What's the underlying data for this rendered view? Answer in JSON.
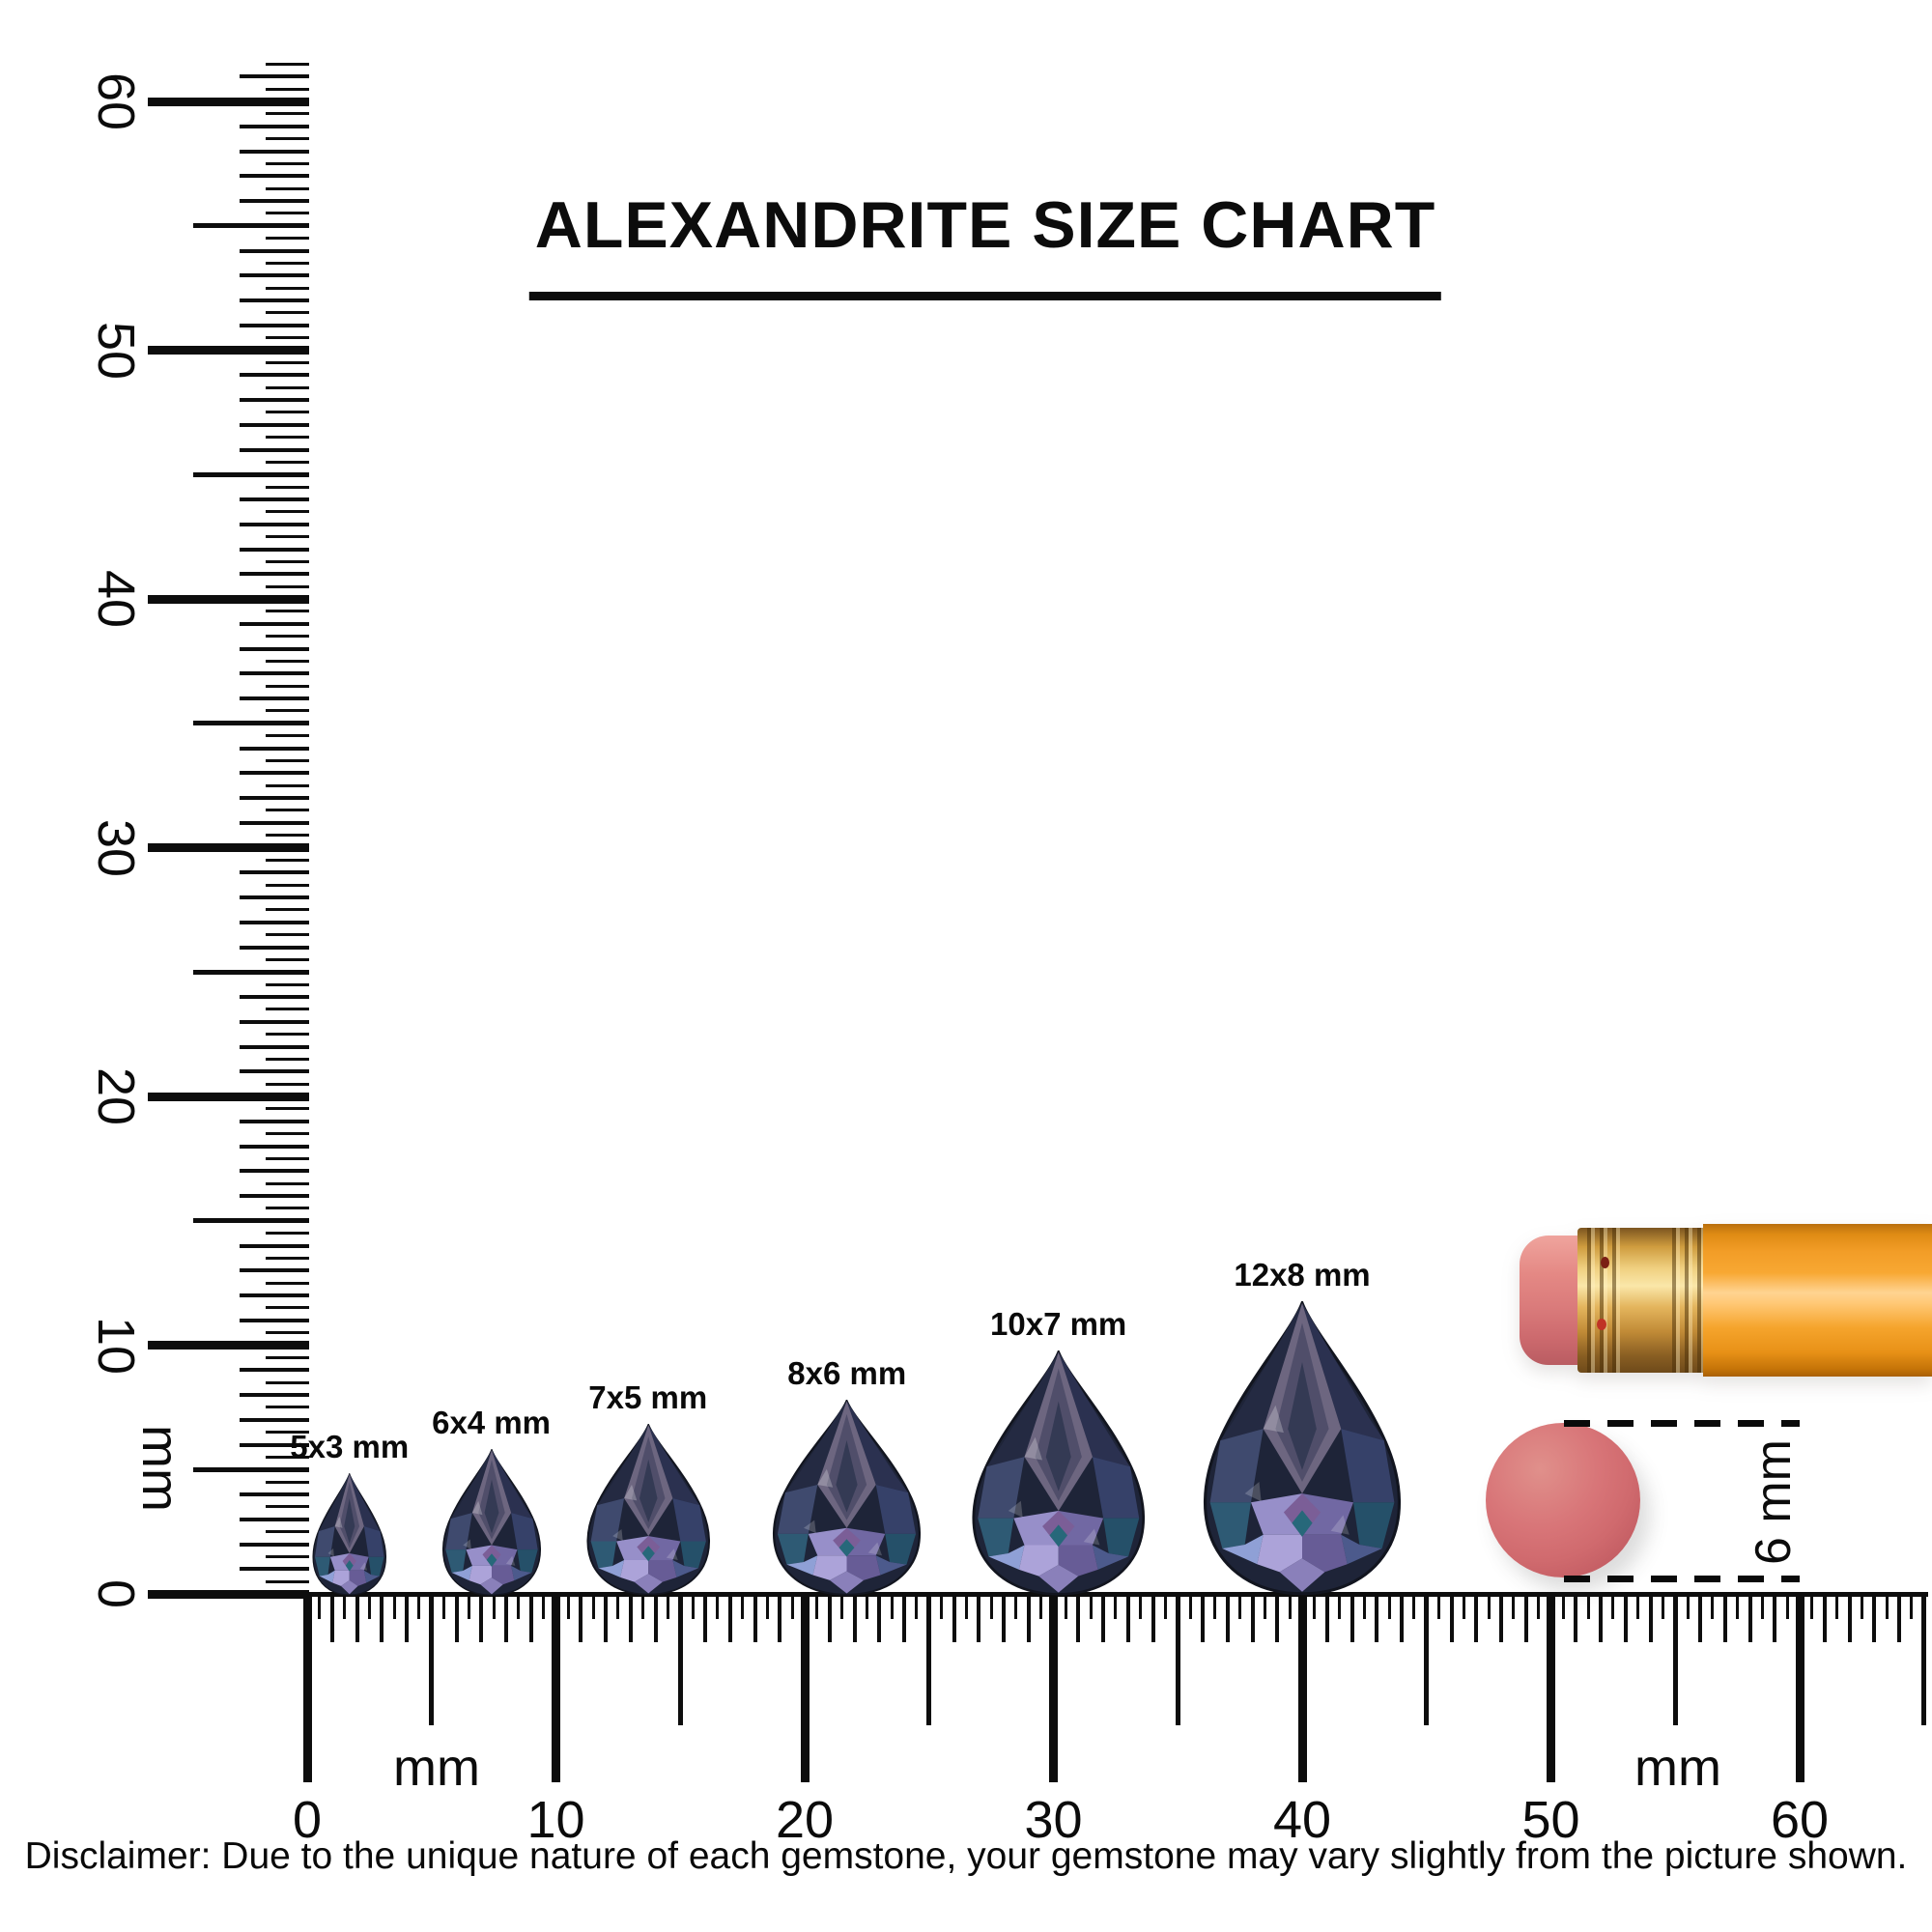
{
  "title": "ALEXANDRITE SIZE CHART",
  "disclaimer": "Disclaimer: Due to the unique nature of each gemstone, your gemstone may vary slightly from the picture shown.",
  "chart_data": {
    "type": "size_chart",
    "subject": "Alexandrite pear-cut gemstones shown at scale against millimeter rulers",
    "unit": "mm",
    "gemstones": [
      {
        "label": "5x3 mm",
        "length_mm": 5,
        "width_mm": 3,
        "center_position_mm": 1.7
      },
      {
        "label": "6x4 mm",
        "length_mm": 6,
        "width_mm": 4,
        "center_position_mm": 7.4
      },
      {
        "label": "7x5 mm",
        "length_mm": 7,
        "width_mm": 5,
        "center_position_mm": 13.7
      },
      {
        "label": "8x6 mm",
        "length_mm": 8,
        "width_mm": 6,
        "center_position_mm": 21.7
      },
      {
        "label": "10x7 mm",
        "length_mm": 10,
        "width_mm": 7,
        "center_position_mm": 30.2
      },
      {
        "label": "12x8 mm",
        "length_mm": 12,
        "width_mm": 8,
        "center_position_mm": 40.0
      }
    ],
    "vertical_ruler": {
      "min_mm": 0,
      "max_mm": 60,
      "tick_labels": [
        "0",
        "10",
        "20",
        "30",
        "40",
        "50",
        "60"
      ],
      "unit_label": "mm"
    },
    "horizontal_ruler": {
      "min_mm": 0,
      "max_mm": 60,
      "tick_labels": [
        "0",
        "10",
        "20",
        "30",
        "40",
        "50",
        "60"
      ],
      "unit_labels": [
        "mm",
        "mm"
      ]
    },
    "reference_objects": [
      {
        "name": "pencil",
        "description": "orange pencil end with gold ferrule and pink eraser"
      },
      {
        "name": "round-eraser-disc",
        "diameter_label": "6 mm",
        "diameter_mm": 6
      }
    ]
  },
  "colors": {
    "ink": "#0d0d0d",
    "gem_base": "#1e2438",
    "gem_crown": "#6d6680",
    "gem_lavender": "#978fc9",
    "gem_periwinkle": "#8fa0d6",
    "gem_teal": "#2e5a74",
    "gem_violet": "#7b5e97",
    "pencil_orange": "#f8a833",
    "ferrule_gold": "#e3b45c",
    "eraser_pink": "#e48884",
    "disc_coral": "#d06a6e"
  }
}
